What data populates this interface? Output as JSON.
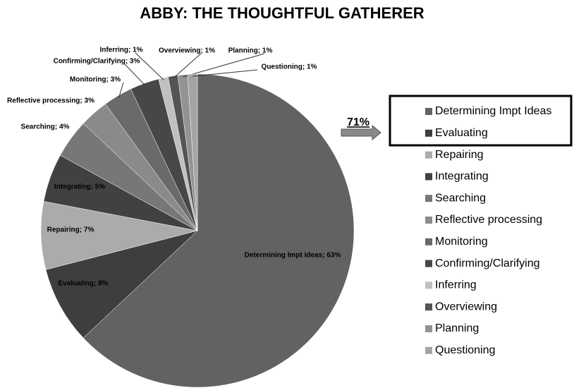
{
  "chart_data": {
    "type": "pie",
    "title": "ABBY: THE THOUGHTFUL GATHERER",
    "categories": [
      "Determining Impt Ideas",
      "Evaluating",
      "Repairing",
      "Integrating",
      "Searching",
      "Reflective processing",
      "Monitoring",
      "Confirming/Clarifying",
      "Inferring",
      "Overviewing",
      "Planning",
      "Questioning"
    ],
    "values": [
      63,
      8,
      7,
      5,
      4,
      3,
      3,
      3,
      1,
      1,
      1,
      1
    ],
    "value_labels": [
      "Determining Impt Ideas; 63%",
      "Evaluating; 8%",
      "Repairing; 7%",
      "Integrating; 5%",
      "Searching; 4%",
      "Reflective processing; 3%",
      "Monitoring; 3%",
      "Confirming/Clarifying; 3%",
      "Inferring; 1%",
      "Overviewing; 1%",
      "Planning; 1%",
      "Questioning; 1%"
    ],
    "colors": [
      "#626262",
      "#3e3e3e",
      "#ababab",
      "#414141",
      "#777777",
      "#8a8a8a",
      "#6a6a6a",
      "#474747",
      "#c0c0c0",
      "#545454",
      "#939393",
      "#a4a4a4"
    ],
    "annotation": "71%",
    "legend": "right"
  }
}
